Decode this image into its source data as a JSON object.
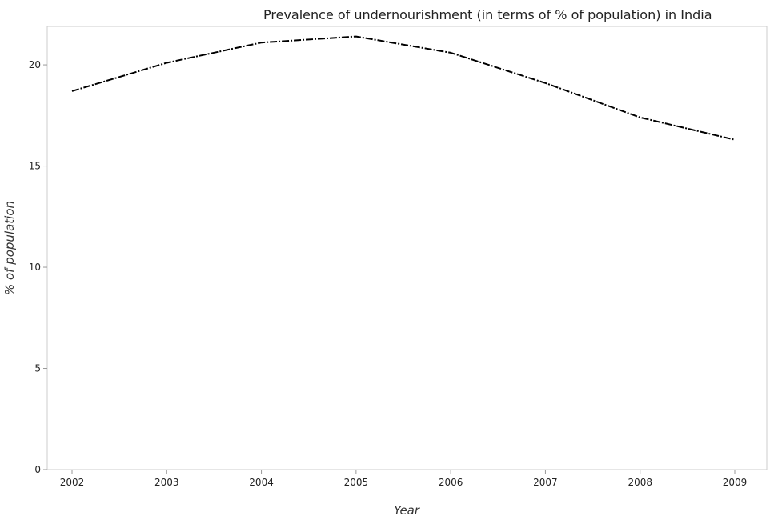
{
  "chart_data": {
    "type": "line",
    "title": "Prevalence of undernourishment (in terms of % of population) in India",
    "xlabel": "Year",
    "ylabel": "% of population",
    "categories": [
      "2002",
      "2003",
      "2004",
      "2005",
      "2006",
      "2007",
      "2008",
      "2009"
    ],
    "yticks": [
      "0",
      "5",
      "10",
      "15",
      "20"
    ],
    "ylim": [
      0,
      21.9
    ],
    "series": [
      {
        "values": [
          18.7,
          20.1,
          21.1,
          21.4,
          20.6,
          19.1,
          17.4,
          16.3
        ]
      }
    ],
    "grid": false,
    "line_color": "#000000"
  }
}
